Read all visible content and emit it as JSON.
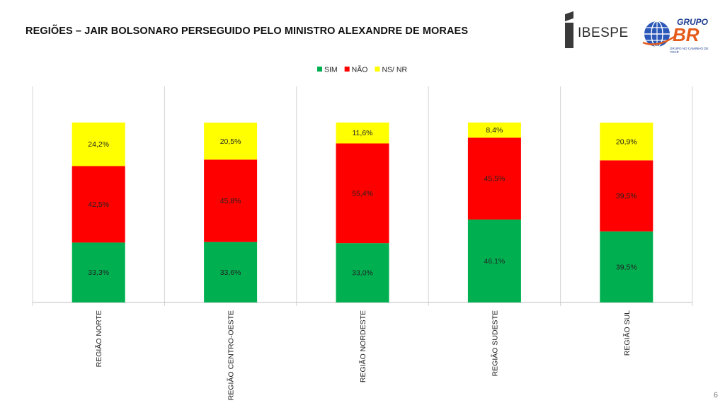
{
  "header": {
    "title": "REGIÕES – JAIR BOLSONARO PERSEGUIDO PELO MINISTRO ALEXANDRE DE MORAES",
    "logo_ibespe": "IBESPE",
    "logo_grupo": "GRUPO",
    "logo_br": "BR",
    "logo_tagline": "GRUPO NO CAMINHO DE VOCÊ"
  },
  "page_number": "6",
  "colors": {
    "sim": "#00b050",
    "nao": "#ff0000",
    "ns": "#ffff00"
  },
  "chart_data": {
    "type": "bar",
    "stacked": true,
    "title": "",
    "xlabel": "",
    "ylabel": "",
    "ylim": [
      0,
      100
    ],
    "grid": false,
    "legend_position": "top-center",
    "categories": [
      "REGIÃO NORTE",
      "REGIÃO CENTRO-OESTE",
      "REGIÃO NORDESTE",
      "REGIÃO SUDESTE",
      "REGIÃO SUL"
    ],
    "series": [
      {
        "name": "SIM",
        "color": "#00b050",
        "values": [
          33.3,
          33.6,
          33.0,
          46.1,
          39.5
        ],
        "labels": [
          "33,3%",
          "33,6%",
          "33,0%",
          "46,1%",
          "39,5%"
        ]
      },
      {
        "name": "NÃO",
        "color": "#ff0000",
        "values": [
          42.5,
          45.8,
          55.4,
          45.5,
          39.5
        ],
        "labels": [
          "42,5%",
          "45,8%",
          "55,4%",
          "45,5%",
          "39,5%"
        ]
      },
      {
        "name": "NS/ NR",
        "color": "#ffff00",
        "values": [
          24.2,
          20.5,
          11.6,
          8.4,
          20.9
        ],
        "labels": [
          "24,2%",
          "20,5%",
          "11,6%",
          "8,4%",
          "20,9%"
        ]
      }
    ]
  }
}
